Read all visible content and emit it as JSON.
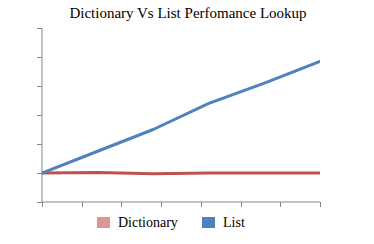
{
  "chart_data": {
    "type": "line",
    "title": "Dictionary Vs List Perfomance Lookup",
    "x": [
      0,
      1.4,
      2.8,
      4.2,
      5.6,
      7
    ],
    "xlim": [
      0,
      7
    ],
    "xticks": [
      0,
      1,
      2,
      3,
      4,
      5,
      6,
      7
    ],
    "ylim": [
      0,
      6
    ],
    "yticks": [
      0,
      1,
      2,
      3,
      4,
      5,
      6
    ],
    "series": [
      {
        "name": "Dictionary",
        "color": "#c0504d",
        "values": [
          1.0,
          1.02,
          0.97,
          1.0,
          1.0,
          1.0
        ]
      },
      {
        "name": "List",
        "color": "#4f81bd",
        "values": [
          1.0,
          1.75,
          2.5,
          3.4,
          4.1,
          4.85
        ]
      }
    ],
    "legend": "bottom",
    "grid": false,
    "tick_labels": false
  }
}
